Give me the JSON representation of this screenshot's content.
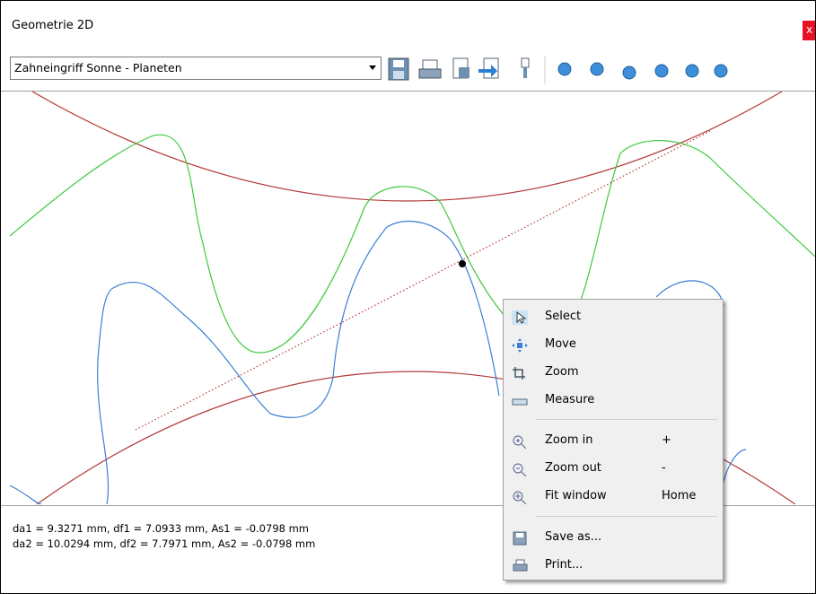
{
  "window": {
    "title": "Geometrie 2D",
    "close": "x"
  },
  "toolbar": {
    "dropdown": "Zahneingriff Sonne - Planeten"
  },
  "context_menu": {
    "items": [
      {
        "label": "Select"
      },
      {
        "label": "Move"
      },
      {
        "label": "Zoom"
      },
      {
        "label": "Measure"
      },
      {
        "label": "Zoom in",
        "shortcut": "+"
      },
      {
        "label": "Zoom out",
        "shortcut": "-"
      },
      {
        "label": "Fit window",
        "shortcut": "Home"
      },
      {
        "label": "Save as..."
      },
      {
        "label": "Print..."
      }
    ]
  },
  "status": {
    "lines": [
      "da1 = 9.3271 mm, df1 = 7.0933 mm, As1 = -0.0798 mm",
      "da2 = 10.0294 mm, df2 = 7.7971 mm, As2 = -0.0798 mm"
    ]
  }
}
